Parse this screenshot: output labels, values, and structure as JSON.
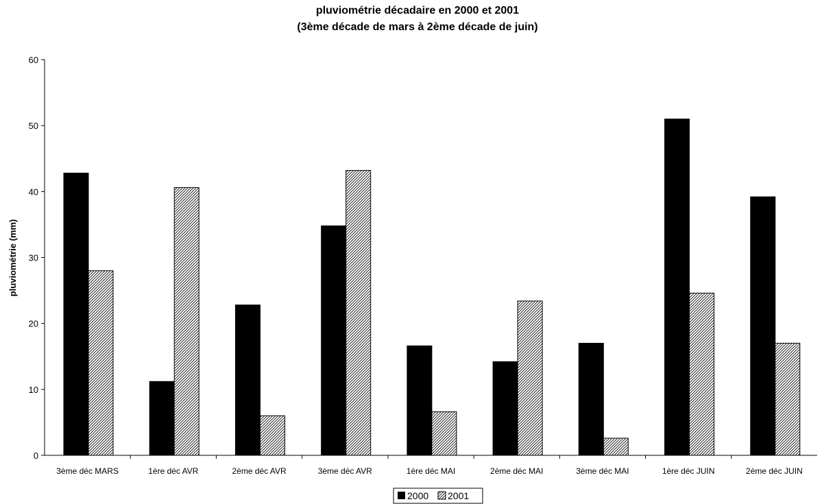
{
  "chart_data": {
    "type": "bar",
    "title": [
      "pluviométrie décadaire en 2000 et 2001",
      "(3ème décade de mars à 2ème décade de juin)"
    ],
    "xlabel": "",
    "ylabel": "pluviométrie (mm)",
    "ylim": [
      0,
      60
    ],
    "yticks": [
      0,
      10,
      20,
      30,
      40,
      50,
      60
    ],
    "grid": false,
    "legend_position": "bottom",
    "categories": [
      "3ème déc MARS",
      "1ère déc AVR",
      "2ème déc AVR",
      "3ème déc AVR",
      "1ère déc MAI",
      "2ème déc MAI",
      "3ème déc MAI",
      "1ère déc JUIN",
      "2ème déc JUIN"
    ],
    "series": [
      {
        "name": "2000",
        "color": "#000000",
        "pattern": "solid",
        "values": [
          42.8,
          11.2,
          22.8,
          34.8,
          16.6,
          14.2,
          17.0,
          51.0,
          39.2
        ]
      },
      {
        "name": "2001",
        "color": "#ffffff",
        "pattern": "diagonal-hatch",
        "values": [
          28.0,
          40.6,
          6.0,
          43.2,
          6.6,
          23.4,
          2.6,
          24.6,
          17.0
        ]
      }
    ]
  }
}
